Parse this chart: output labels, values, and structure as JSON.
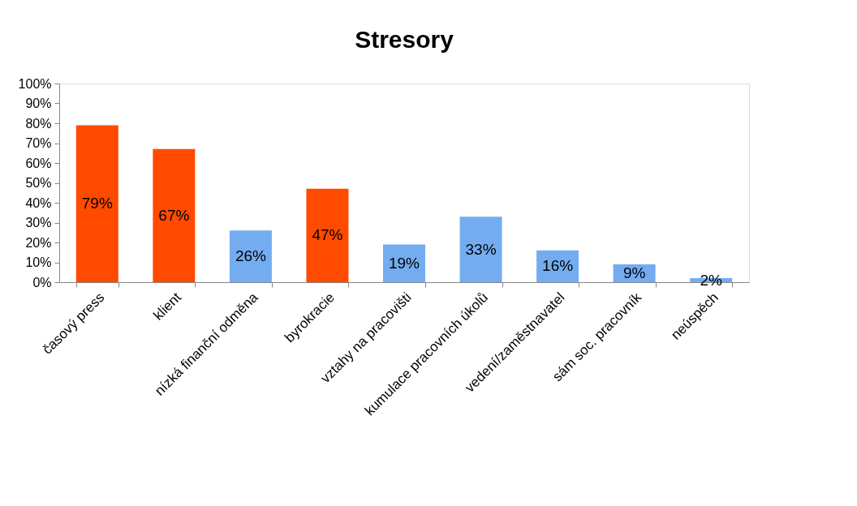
{
  "chart_data": {
    "type": "bar",
    "title": "Stresory",
    "categories": [
      "časový press",
      "klient",
      "nízká finanční odměna",
      "byrokracie",
      "vztahy na pracovišti",
      "kumulace pracovních úkolů",
      "vedení/zaměstnavatel",
      "sám soc. pracovník",
      "neúspěch"
    ],
    "values": [
      79,
      67,
      26,
      47,
      19,
      33,
      16,
      9,
      2
    ],
    "colors": [
      "#ff4a00",
      "#ff4a00",
      "#74acf0",
      "#ff4a00",
      "#74acf0",
      "#74acf0",
      "#74acf0",
      "#74acf0",
      "#74acf0"
    ],
    "value_labels": [
      "79%",
      "67%",
      "26%",
      "47%",
      "19%",
      "33%",
      "16%",
      "9%",
      "2%"
    ],
    "ylim": [
      0,
      100
    ],
    "yticks": [
      {
        "value": 0,
        "label": "0%"
      },
      {
        "value": 10,
        "label": "10%"
      },
      {
        "value": 20,
        "label": "20%"
      },
      {
        "value": 30,
        "label": "30%"
      },
      {
        "value": 40,
        "label": "40%"
      },
      {
        "value": 50,
        "label": "50%"
      },
      {
        "value": 60,
        "label": "60%"
      },
      {
        "value": 70,
        "label": "70%"
      },
      {
        "value": 80,
        "label": "80%"
      },
      {
        "value": 90,
        "label": "90%"
      },
      {
        "value": 100,
        "label": "100%"
      }
    ],
    "grid": false
  }
}
